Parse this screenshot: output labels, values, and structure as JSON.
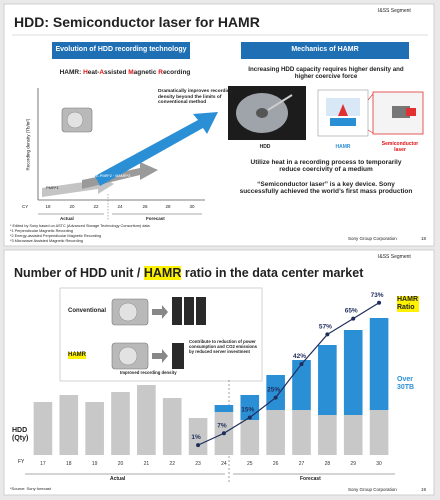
{
  "slides": [
    {
      "logo": "I&SS Segment",
      "title": "HDD: Semiconductor laser for HAMR",
      "left": {
        "header": "Evolution of HDD recording technology",
        "subtitle_parts": [
          "HAMR: ",
          "H",
          "eat-",
          "A",
          "ssisted ",
          "M",
          "agnetic ",
          "R",
          "ecording"
        ],
        "annotation": "Dramatically improves recording density beyond the limits of conventional method",
        "y_label": "Recording density (Tb/in²)",
        "arrow_labels": [
          "PMR*1",
          "E-PMR*2 · MAMR*3",
          "HAMR"
        ],
        "x_label": "CY",
        "x_ticks": [
          "18",
          "20",
          "22",
          "24",
          "26",
          "28",
          "30"
        ],
        "periods": [
          "Actual",
          "Forecast"
        ],
        "footnotes": [
          "* Edited by Sony based on ASTC (Advanced Storage Technology Consortium) data",
          "*1 Perpendicular Magnetic Recording",
          "*2 Energy-assisted Perpendicular Magnetic Recording",
          "*3 Microwave Assisted Magnetic Recording"
        ]
      },
      "right": {
        "header": "Mechanics of HAMR",
        "intro": "Increasing HDD capacity requires higher density and higher coercive force",
        "image_labels": [
          "HDD",
          "HAMR",
          "Semiconductor laser"
        ],
        "point1": "Utilize heat in a recording process to temporarily reduce coercivity of a medium",
        "point2": "“Semiconductor laser” is a key device. Sony successfully achieved the world’s first mass production"
      },
      "footer": "Sony Group Corporation",
      "page": "18"
    },
    {
      "logo": "I&SS Segment",
      "title_parts": [
        "Number of HDD unit / ",
        "HAMR",
        " ratio in the data center market"
      ],
      "inset": {
        "conventional": "Conventional",
        "hamr": "HAMR",
        "benefit": "Contribute to reduction of power consumption and CO2 emissions by reduced server investment",
        "density": "Improved recording density"
      },
      "chart_data": {
        "type": "bar",
        "stacked": true,
        "y_label": "HDD (Qty)",
        "x_label": "FY",
        "categories": [
          "17",
          "18",
          "19",
          "20",
          "21",
          "22",
          "23",
          "24",
          "25",
          "26",
          "27",
          "28",
          "29",
          "30"
        ],
        "ylim": [
          0,
          170
        ],
        "y2lim": [
          -4,
          82
        ],
        "series": [
          {
            "color": "#c8c8c8",
            "values": [
              53,
              60,
              53,
              63,
              70,
              57,
              37,
              43,
              35,
              45,
              45,
              40,
              40,
              45
            ]
          },
          {
            "name": "Over 30TB",
            "color": "#2b8fd6",
            "values": [
              null,
              null,
              null,
              null,
              null,
              null,
              null,
              7,
              25,
              35,
              50,
              70,
              85,
              92
            ]
          },
          {
            "name": "HAMR Ratio",
            "type": "line",
            "axis": "y2",
            "color": "#1f2d5c",
            "values": [
              null,
              null,
              null,
              null,
              null,
              null,
              1,
              7,
              15,
              25,
              42,
              57,
              65,
              73
            ],
            "value_labels": [
              null,
              null,
              null,
              null,
              null,
              null,
              "1%",
              "7%",
              "15%",
              "25%",
              "42%",
              "57%",
              "65%",
              "73%"
            ]
          }
        ],
        "periods": [
          "Actual",
          "Forecast"
        ]
      },
      "source": "*Source: Sony forecast",
      "footer": "Sony Group Corporation",
      "page": "19"
    }
  ]
}
